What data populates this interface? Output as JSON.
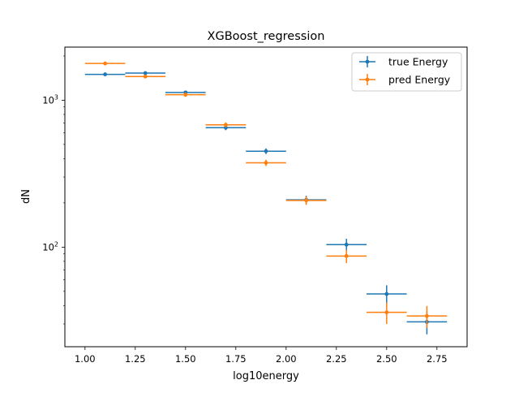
{
  "chart_data": {
    "type": "scatter",
    "title": "XGBoost_regression",
    "xlabel": "log10energy",
    "ylabel": "dN",
    "yscale": "log",
    "xlim": [
      0.9,
      2.9
    ],
    "ylim": [
      21,
      2300
    ],
    "grid": false,
    "legend_position": "top-right",
    "x_ticks": [
      {
        "value": 1.0,
        "label": "1.00"
      },
      {
        "value": 1.25,
        "label": "1.25"
      },
      {
        "value": 1.5,
        "label": "1.50"
      },
      {
        "value": 1.75,
        "label": "1.75"
      },
      {
        "value": 2.0,
        "label": "2.00"
      },
      {
        "value": 2.25,
        "label": "2.25"
      },
      {
        "value": 2.5,
        "label": "2.50"
      },
      {
        "value": 2.75,
        "label": "2.75"
      }
    ],
    "y_ticks": [
      {
        "value": 100,
        "base": "10",
        "exp": "2"
      },
      {
        "value": 1000,
        "base": "10",
        "exp": "3"
      }
    ],
    "series": [
      {
        "name": "true Energy",
        "color": "#1f77b4",
        "points": [
          {
            "x": 1.1,
            "xerr": 0.1,
            "y": 1500,
            "yerr": 35
          },
          {
            "x": 1.3,
            "xerr": 0.1,
            "y": 1530,
            "yerr": 35
          },
          {
            "x": 1.5,
            "xerr": 0.1,
            "y": 1130,
            "yerr": 30
          },
          {
            "x": 1.7,
            "xerr": 0.1,
            "y": 650,
            "yerr": 25
          },
          {
            "x": 1.9,
            "xerr": 0.1,
            "y": 450,
            "yerr": 20
          },
          {
            "x": 2.1,
            "xerr": 0.1,
            "y": 210,
            "yerr": 14
          },
          {
            "x": 2.3,
            "xerr": 0.1,
            "y": 104,
            "yerr": 10
          },
          {
            "x": 2.5,
            "xerr": 0.1,
            "y": 48,
            "yerr": 7
          },
          {
            "x": 2.7,
            "xerr": 0.1,
            "y": 31,
            "yerr": 5.5
          }
        ]
      },
      {
        "name": "pred Energy",
        "color": "#ff7f0e",
        "points": [
          {
            "x": 1.1,
            "xerr": 0.1,
            "y": 1780,
            "yerr": 40
          },
          {
            "x": 1.3,
            "xerr": 0.1,
            "y": 1450,
            "yerr": 38
          },
          {
            "x": 1.5,
            "xerr": 0.1,
            "y": 1090,
            "yerr": 33
          },
          {
            "x": 1.7,
            "xerr": 0.1,
            "y": 680,
            "yerr": 26
          },
          {
            "x": 1.9,
            "xerr": 0.1,
            "y": 375,
            "yerr": 19
          },
          {
            "x": 2.1,
            "xerr": 0.1,
            "y": 208,
            "yerr": 14
          },
          {
            "x": 2.3,
            "xerr": 0.1,
            "y": 87,
            "yerr": 9
          },
          {
            "x": 2.5,
            "xerr": 0.1,
            "y": 36,
            "yerr": 6
          },
          {
            "x": 2.7,
            "xerr": 0.1,
            "y": 34,
            "yerr": 5.8
          }
        ]
      }
    ]
  }
}
